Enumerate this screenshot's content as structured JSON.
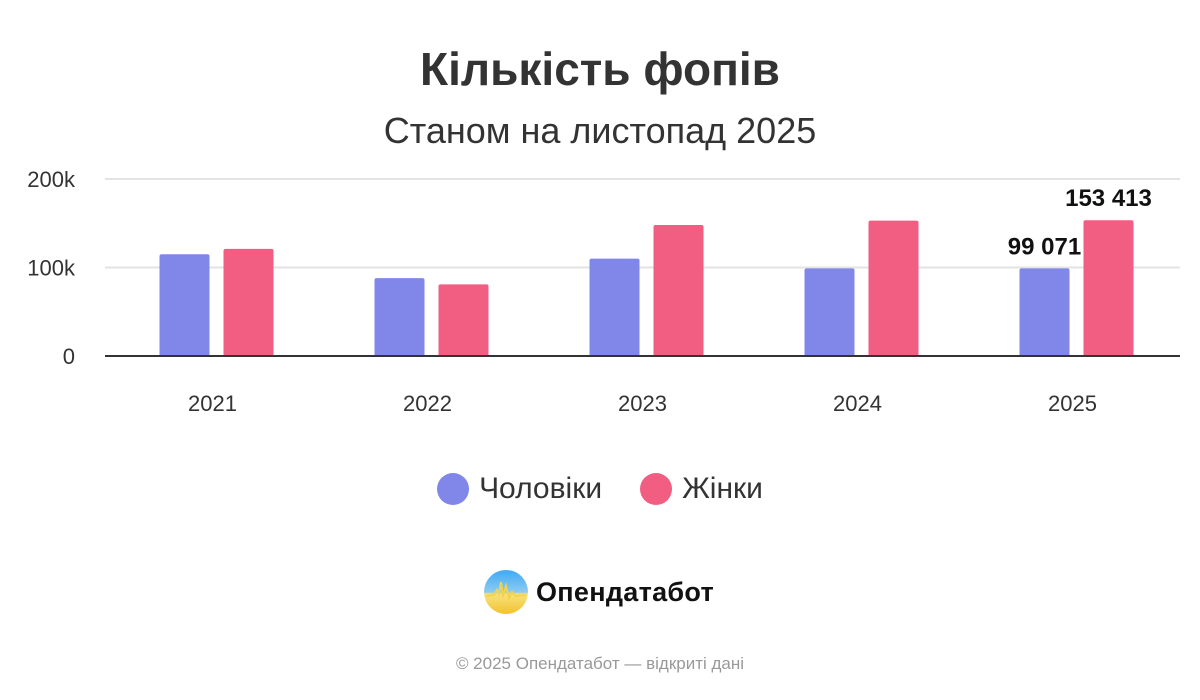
{
  "chart_data": {
    "type": "bar",
    "title": "Кількість фопів",
    "subtitle": "Станом на листопад 2025",
    "categories": [
      "2021",
      "2022",
      "2023",
      "2024",
      "2025"
    ],
    "series": [
      {
        "name": "Чоловіки",
        "color": "#8087E8",
        "values": [
          115000,
          88000,
          110000,
          99000,
          99071
        ]
      },
      {
        "name": "Жінки",
        "color": "#F25E82",
        "values": [
          121000,
          81000,
          148000,
          153000,
          153413
        ]
      }
    ],
    "data_labels": [
      {
        "series": 0,
        "category": "2025",
        "text": "99 071"
      },
      {
        "series": 1,
        "category": "2025",
        "text": "153 413"
      }
    ],
    "yticks": [
      {
        "value": 0,
        "label": "0"
      },
      {
        "value": 100000,
        "label": "100k"
      },
      {
        "value": 200000,
        "label": "200k"
      }
    ],
    "ylim": [
      0,
      200000
    ],
    "grid": true,
    "legend_position": "bottom"
  },
  "branding": {
    "logo_text": "Опендатабот",
    "logo_icon": "opendatabot-logo-icon"
  },
  "footer": "© 2025 Опендатабот — відкриті дані"
}
